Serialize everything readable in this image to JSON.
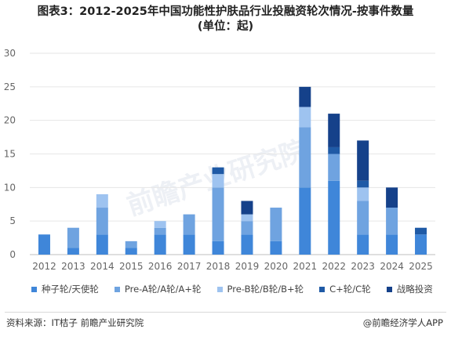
{
  "title": {
    "line1": "图表3：2012-2025年中国功能性护肤品行业投融资轮次情况-按事件数量",
    "line2": "(单位：起)"
  },
  "colors": {
    "seed_angel": "#3F86D9",
    "pre_a_a": "#6FA3E0",
    "pre_b_b": "#9EC3F0",
    "c_plus": "#1F5AA6",
    "strategic": "#15418A",
    "axis_text": "#666666",
    "grid": "#e6e6e6"
  },
  "chart_data": {
    "type": "bar",
    "stacked": true,
    "categories": [
      "2012",
      "2013",
      "2014",
      "2015",
      "2016",
      "2017",
      "2018",
      "2019",
      "2020",
      "2021",
      "2022",
      "2023",
      "2024",
      "2025"
    ],
    "series": [
      {
        "name": "种子轮/天使轮",
        "color": "#3F86D9",
        "values": [
          3,
          1,
          3,
          1,
          3,
          3,
          2,
          3,
          2,
          10,
          11,
          3,
          3,
          3
        ]
      },
      {
        "name": "Pre-A轮/A轮/A+轮",
        "color": "#6FA3E0",
        "values": [
          0,
          3,
          4,
          1,
          1,
          3,
          8,
          2,
          5,
          9,
          4,
          5,
          4,
          0
        ]
      },
      {
        "name": "Pre-B轮/B轮/B+轮",
        "color": "#9EC3F0",
        "values": [
          0,
          0,
          2,
          0,
          1,
          0,
          2,
          1,
          0,
          3,
          0,
          2,
          0,
          0
        ]
      },
      {
        "name": "C+轮/C轮",
        "color": "#1F5AA6",
        "values": [
          0,
          0,
          0,
          0,
          0,
          0,
          1,
          0,
          0,
          0,
          1,
          1,
          0,
          1
        ]
      },
      {
        "name": "战略投资",
        "color": "#15418A",
        "values": [
          0,
          0,
          0,
          0,
          0,
          0,
          0,
          2,
          0,
          3,
          5,
          6,
          3,
          0
        ]
      }
    ],
    "yticks": [
      0,
      5,
      10,
      15,
      20,
      25,
      30
    ],
    "ylim": [
      0,
      30
    ],
    "xlabel": "",
    "ylabel": "",
    "grid": true,
    "legend_position": "bottom"
  },
  "watermark": "前瞻产业研究院",
  "footer": {
    "source": "资料来源：IT桔子 前瞻产业研究院",
    "credit": "@前瞻经济学人APP"
  }
}
